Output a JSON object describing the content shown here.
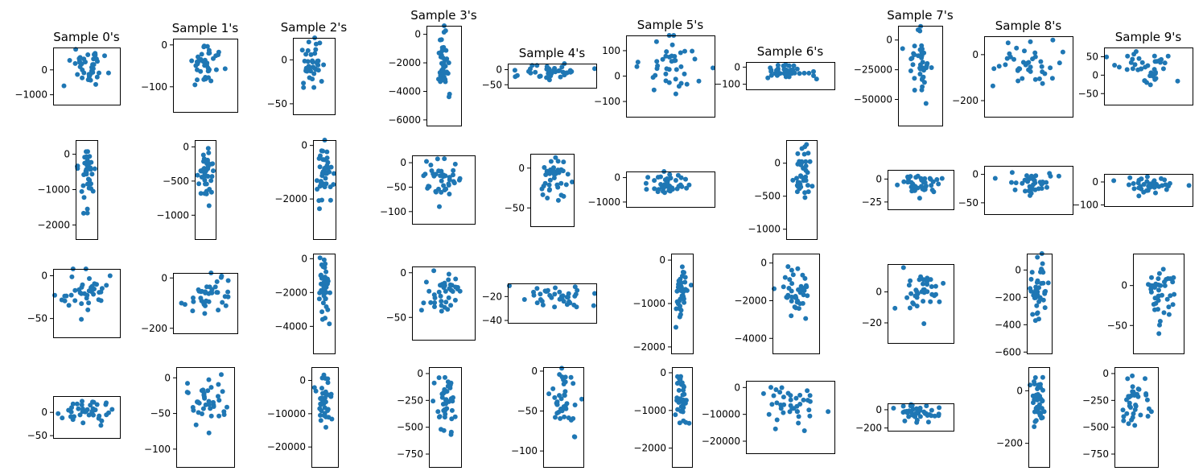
{
  "figure": {
    "point_color": "#1f77b4"
  },
  "chart_data": [
    {
      "type": "scatter",
      "title": "Sample 0's",
      "ylim": [
        -1400,
        900
      ],
      "yticks": [
        0,
        -1000
      ],
      "n": 40,
      "seed": 1,
      "spread": 0.35
    },
    {
      "type": "scatter",
      "title": "Sample 1's",
      "ylim": [
        -160,
        15
      ],
      "yticks": [
        0,
        -100
      ],
      "n": 40,
      "seed": 2,
      "spread": 0.3
    },
    {
      "type": "scatter",
      "title": "Sample 2's",
      "ylim": [
        -62,
        25
      ],
      "yticks": [
        0,
        -50
      ],
      "n": 40,
      "seed": 3,
      "spread": 0.3
    },
    {
      "type": "scatter",
      "title": "Sample 3's",
      "ylim": [
        -6400,
        600
      ],
      "yticks": [
        0,
        -2000,
        -4000,
        -6000
      ],
      "n": 40,
      "seed": 4,
      "spread": 0.2
    },
    {
      "type": "scatter",
      "title": "Sample 4's",
      "ylim": [
        -60,
        20
      ],
      "yticks": [
        0,
        -50
      ],
      "n": 40,
      "seed": 5,
      "spread": 0.35
    },
    {
      "type": "scatter",
      "title": "Sample 5's",
      "ylim": [
        -160,
        160
      ],
      "yticks": [
        100,
        0,
        -100
      ],
      "n": 40,
      "seed": 6,
      "spread": 0.35
    },
    {
      "type": "scatter",
      "title": "Sample 6's",
      "ylim": [
        -130,
        30
      ],
      "yticks": [
        0,
        -100
      ],
      "n": 40,
      "seed": 7,
      "spread": 0.3
    },
    {
      "type": "scatter",
      "title": "Sample 7's",
      "ylim": [
        -72000,
        12000
      ],
      "yticks": [
        0,
        -25000,
        -50000
      ],
      "n": 40,
      "seed": 8,
      "spread": 0.25
    },
    {
      "type": "scatter",
      "title": "Sample 8's",
      "ylim": [
        -270,
        80
      ],
      "yticks": [
        0,
        -200
      ],
      "n": 40,
      "seed": 9,
      "spread": 0.4
    },
    {
      "type": "scatter",
      "title": "Sample 9's",
      "ylim": [
        -80,
        75
      ],
      "yticks": [
        50,
        0,
        -50
      ],
      "n": 40,
      "seed": 10,
      "spread": 0.3
    },
    {
      "type": "scatter",
      "title": "",
      "ylim": [
        -2400,
        400
      ],
      "yticks": [
        0,
        -1000,
        -2000
      ],
      "n": 40,
      "seed": 11,
      "spread": 0.35
    },
    {
      "type": "scatter",
      "title": "",
      "ylim": [
        -1350,
        100
      ],
      "yticks": [
        0,
        -500,
        -1000
      ],
      "n": 40,
      "seed": 12,
      "spread": 0.35
    },
    {
      "type": "scatter",
      "title": "",
      "ylim": [
        -3500,
        200
      ],
      "yticks": [
        0,
        -2000
      ],
      "n": 40,
      "seed": 13,
      "spread": 0.35
    },
    {
      "type": "scatter",
      "title": "",
      "ylim": [
        -125,
        15
      ],
      "yticks": [
        0,
        -50,
        -100
      ],
      "n": 40,
      "seed": 14,
      "spread": 0.3
    },
    {
      "type": "scatter",
      "title": "",
      "ylim": [
        -73,
        18
      ],
      "yticks": [
        0,
        -50
      ],
      "n": 40,
      "seed": 15,
      "spread": 0.35
    },
    {
      "type": "scatter",
      "title": "",
      "ylim": [
        -1200,
        250
      ],
      "yticks": [
        0,
        -1000
      ],
      "n": 40,
      "seed": 16,
      "spread": 0.25
    },
    {
      "type": "scatter",
      "title": "",
      "ylim": [
        -1150,
        350
      ],
      "yticks": [
        0,
        -500,
        -1000
      ],
      "n": 40,
      "seed": 17,
      "spread": 0.35
    },
    {
      "type": "scatter",
      "title": "",
      "ylim": [
        -33,
        10
      ],
      "yticks": [
        0,
        -25
      ],
      "n": 40,
      "seed": 18,
      "spread": 0.35
    },
    {
      "type": "scatter",
      "title": "",
      "ylim": [
        -70,
        15
      ],
      "yticks": [
        0,
        -50
      ],
      "n": 40,
      "seed": 19,
      "spread": 0.3
    },
    {
      "type": "scatter",
      "title": "",
      "ylim": [
        -105,
        35
      ],
      "yticks": [
        0,
        -100
      ],
      "n": 40,
      "seed": 20,
      "spread": 0.3
    },
    {
      "type": "scatter",
      "title": "",
      "ylim": [
        -72,
        8
      ],
      "yticks": [
        0,
        -50
      ],
      "n": 40,
      "seed": 21,
      "spread": 0.35
    },
    {
      "type": "scatter",
      "title": "",
      "ylim": [
        -220,
        20
      ],
      "yticks": [
        0,
        -200
      ],
      "n": 40,
      "seed": 22,
      "spread": 0.35
    },
    {
      "type": "scatter",
      "title": "",
      "ylim": [
        -5600,
        300
      ],
      "yticks": [
        0,
        -2000,
        -4000
      ],
      "n": 40,
      "seed": 23,
      "spread": 0.3
    },
    {
      "type": "scatter",
      "title": "",
      "ylim": [
        -75,
        7
      ],
      "yticks": [
        0,
        -50
      ],
      "n": 40,
      "seed": 24,
      "spread": 0.35
    },
    {
      "type": "scatter",
      "title": "",
      "ylim": [
        -42,
        -9
      ],
      "yticks": [
        -20,
        -40
      ],
      "n": 40,
      "seed": 25,
      "spread": 0.35
    },
    {
      "type": "scatter",
      "title": "",
      "ylim": [
        -2150,
        150
      ],
      "yticks": [
        0,
        -1000,
        -2000
      ],
      "n": 40,
      "seed": 26,
      "spread": 0.3
    },
    {
      "type": "scatter",
      "title": "",
      "ylim": [
        -4800,
        500
      ],
      "yticks": [
        0,
        -2000,
        -4000
      ],
      "n": 40,
      "seed": 27,
      "spread": 0.3
    },
    {
      "type": "scatter",
      "title": "",
      "ylim": [
        -33,
        18
      ],
      "yticks": [
        0,
        -20
      ],
      "n": 40,
      "seed": 28,
      "spread": 0.35
    },
    {
      "type": "scatter",
      "title": "",
      "ylim": [
        -610,
        120
      ],
      "yticks": [
        0,
        -200,
        -400,
        -600
      ],
      "n": 40,
      "seed": 29,
      "spread": 0.3
    },
    {
      "type": "scatter",
      "title": "",
      "ylim": [
        -85,
        40
      ],
      "yticks": [
        0,
        -50
      ],
      "n": 40,
      "seed": 30,
      "spread": 0.3
    },
    {
      "type": "scatter",
      "title": "",
      "ylim": [
        -55,
        35
      ],
      "yticks": [
        0,
        -50
      ],
      "n": 40,
      "seed": 31,
      "spread": 0.35
    },
    {
      "type": "scatter",
      "title": "",
      "ylim": [
        -125,
        15
      ],
      "yticks": [
        0,
        -50,
        -100
      ],
      "n": 40,
      "seed": 32,
      "spread": 0.35
    },
    {
      "type": "scatter",
      "title": "",
      "ylim": [
        -26000,
        4000
      ],
      "yticks": [
        0,
        -10000,
        -20000
      ],
      "n": 40,
      "seed": 33,
      "spread": 0.25
    },
    {
      "type": "scatter",
      "title": "",
      "ylim": [
        -870,
        60
      ],
      "yticks": [
        0,
        -250,
        -500,
        -750
      ],
      "n": 40,
      "seed": 34,
      "spread": 0.3
    },
    {
      "type": "scatter",
      "title": "",
      "ylim": [
        -120,
        5
      ],
      "yticks": [
        0,
        -50,
        -100
      ],
      "n": 40,
      "seed": 35,
      "spread": 0.3
    },
    {
      "type": "scatter",
      "title": "",
      "ylim": [
        -2500,
        150
      ],
      "yticks": [
        0,
        -1000,
        -2000
      ],
      "n": 40,
      "seed": 36,
      "spread": 0.3
    },
    {
      "type": "scatter",
      "title": "",
      "ylim": [
        -24500,
        2500
      ],
      "yticks": [
        0,
        -10000,
        -20000
      ],
      "n": 40,
      "seed": 37,
      "spread": 0.3
    },
    {
      "type": "scatter",
      "title": "",
      "ylim": [
        -230,
        70
      ],
      "yticks": [
        0,
        -200
      ],
      "n": 40,
      "seed": 38,
      "spread": 0.35
    },
    {
      "type": "scatter",
      "title": "",
      "ylim": [
        -290,
        90
      ],
      "yticks": [
        0,
        -200
      ],
      "n": 40,
      "seed": 39,
      "spread": 0.3
    },
    {
      "type": "scatter",
      "title": "",
      "ylim": [
        -870,
        60
      ],
      "yticks": [
        0,
        -250,
        -500,
        -750
      ],
      "n": 40,
      "seed": 40,
      "spread": 0.3
    }
  ]
}
